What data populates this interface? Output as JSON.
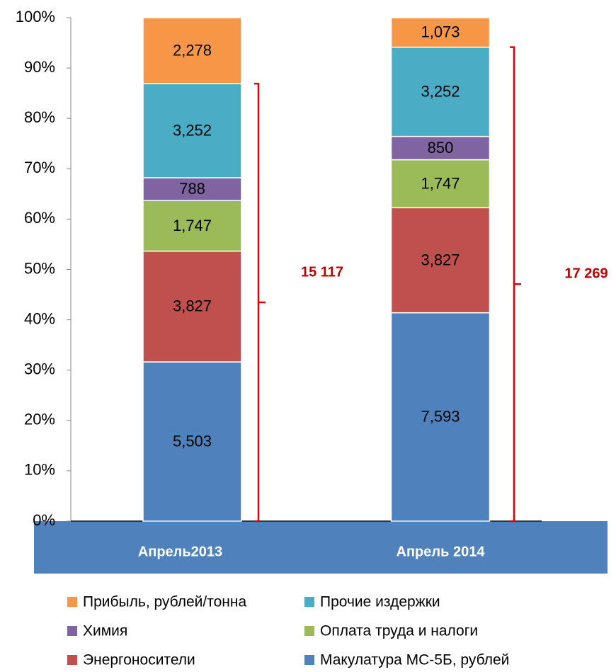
{
  "chart_data": {
    "type": "bar",
    "stacking": "percent",
    "categories": [
      "Апрель2013",
      "Апрель 2014"
    ],
    "series": [
      {
        "name": "Макулатура МС-5Б, рублей",
        "color": "#4f81bd",
        "values": [
          5503,
          7593
        ],
        "value_labels": [
          "5,503",
          "7,593"
        ]
      },
      {
        "name": "Энергоносители",
        "color": "#c0504d",
        "values": [
          3827,
          3827
        ],
        "value_labels": [
          "3,827",
          "3,827"
        ]
      },
      {
        "name": "Оплата труда и налоги",
        "color": "#9bbb59",
        "values": [
          1747,
          1747
        ],
        "value_labels": [
          "1,747",
          "1,747"
        ]
      },
      {
        "name": "Химия",
        "color": "#8064a2",
        "values": [
          788,
          850
        ],
        "value_labels": [
          "788",
          "850"
        ]
      },
      {
        "name": "Прочие издержки",
        "color": "#4bacc6",
        "values": [
          3252,
          3252
        ],
        "value_labels": [
          "3,252",
          "3,252"
        ]
      },
      {
        "name": "Прибыль, рублей/тонна",
        "color": "#f79646",
        "values": [
          2278,
          1073
        ],
        "value_labels": [
          "2,278",
          "1,073"
        ]
      }
    ],
    "annotations": [
      "15 117",
      "17 269"
    ],
    "ylim": [
      0,
      100
    ],
    "yticks": [
      {
        "value": 0,
        "label": "0%"
      },
      {
        "value": 10,
        "label": "10%"
      },
      {
        "value": 20,
        "label": "20%"
      },
      {
        "value": 30,
        "label": "30%"
      },
      {
        "value": 40,
        "label": "40%"
      },
      {
        "value": 50,
        "label": "50%"
      },
      {
        "value": 60,
        "label": "60%"
      },
      {
        "value": 70,
        "label": "70%"
      },
      {
        "value": 80,
        "label": "80%"
      },
      {
        "value": 90,
        "label": "90%"
      },
      {
        "value": 100,
        "label": "100%"
      }
    ],
    "grid": false,
    "legend": "bottom"
  }
}
